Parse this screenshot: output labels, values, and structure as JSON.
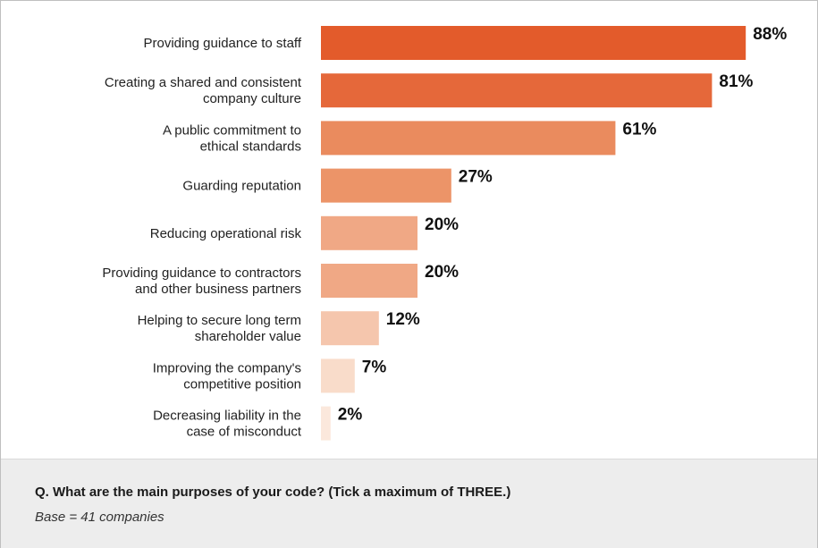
{
  "chart_data": {
    "type": "bar",
    "orientation": "horizontal",
    "categories": [
      [
        "Providing guidance to staff"
      ],
      [
        "Creating a shared and consistent",
        "company culture"
      ],
      [
        "A public commitment to",
        "ethical standards"
      ],
      [
        "Guarding reputation"
      ],
      [
        "Reducing operational risk"
      ],
      [
        "Providing guidance to contractors",
        "and other business partners"
      ],
      [
        "Helping to secure long term",
        "shareholder value"
      ],
      [
        "Improving the company's",
        "competitive position"
      ],
      [
        "Decreasing liability in the",
        "case of misconduct"
      ]
    ],
    "values": [
      88,
      81,
      61,
      27,
      20,
      20,
      12,
      7,
      2
    ],
    "value_labels": [
      "88%",
      "81%",
      "61%",
      "27%",
      "20%",
      "20%",
      "12%",
      "7%",
      "2%"
    ],
    "bar_colors": [
      "#e35b2b",
      "#e5683a",
      "#ea8b5e",
      "#ec9468",
      "#f0a885",
      "#f0a885",
      "#f5c6ad",
      "#f9dcca",
      "#fbe8dc"
    ],
    "xlim": [
      0,
      100
    ],
    "unit": "%",
    "grid": false,
    "legend": "none"
  },
  "footer": {
    "question": "Q. What are the main purposes of your code? (Tick a maximum of THREE.)",
    "base": "Base = 41 companies"
  }
}
